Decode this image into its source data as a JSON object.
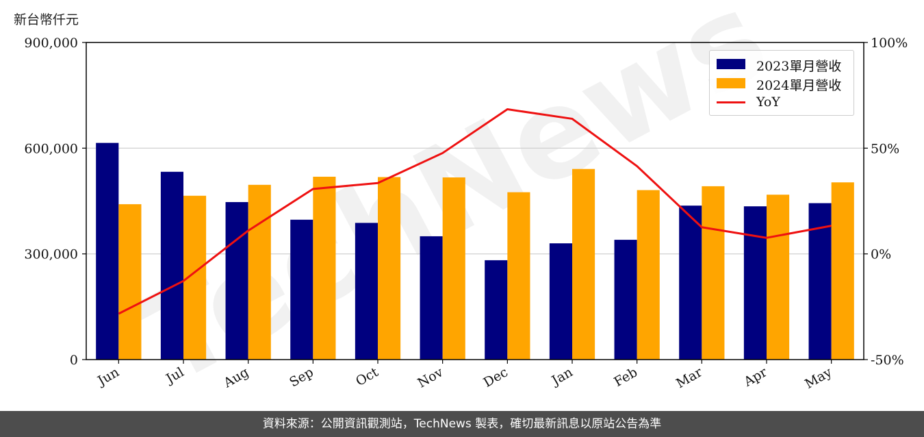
{
  "unit_label": "新台幣仟元",
  "footer_text": "資料來源：公開資訊觀測站，TechNews 製表，確切最新訊息以原站公告為準",
  "watermark_text": "TechNews",
  "colors": {
    "series_2023": "#00007f",
    "series_2024": "#ffa500",
    "yoy_line": "#ee1111",
    "watermark_red": "#f7c9cc",
    "watermark_gray": "#d8d8d8",
    "footer_bg": "#4d4d4d"
  },
  "chart_data": {
    "type": "bar",
    "categories": [
      "Jun",
      "Jul",
      "Aug",
      "Sep",
      "Oct",
      "Nov",
      "Dec",
      "Jan",
      "Feb",
      "Mar",
      "Apr",
      "May"
    ],
    "series": [
      {
        "name": "2023單月營收",
        "values": [
          615000,
          533000,
          447000,
          397000,
          388000,
          350000,
          282000,
          330000,
          340000,
          437000,
          435000,
          444000
        ]
      },
      {
        "name": "2024單月營收",
        "values": [
          441000,
          465000,
          496000,
          519000,
          518000,
          517000,
          475000,
          541000,
          481000,
          492000,
          468000,
          503000
        ]
      }
    ],
    "line_series": {
      "name": "YoY",
      "axis": "right",
      "values": [
        -28.3,
        -12.8,
        11.0,
        30.7,
        33.5,
        47.7,
        68.4,
        63.9,
        41.5,
        12.6,
        7.6,
        13.3
      ]
    },
    "yaxis_left": {
      "range": [
        0,
        900000
      ],
      "ticks": [
        "0",
        "300,000",
        "600,000",
        "900,000"
      ]
    },
    "yaxis_right": {
      "range": [
        -50,
        100
      ],
      "ticks": [
        "-50%",
        "0%",
        "50%",
        "100%"
      ]
    },
    "grid": "horizontal",
    "legend_position": "top-right"
  }
}
